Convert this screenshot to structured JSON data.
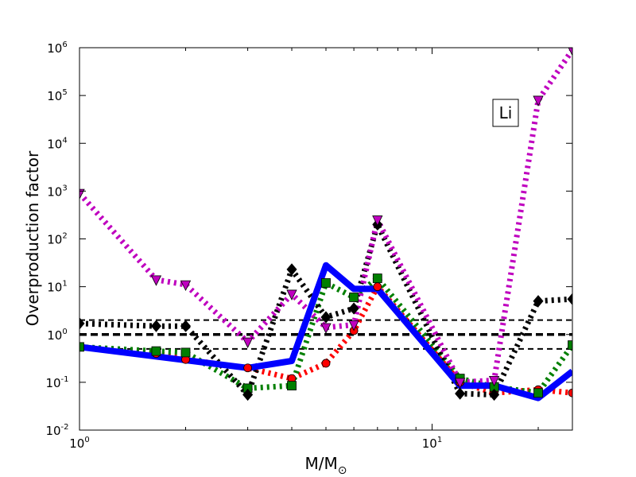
{
  "chart_data": {
    "type": "line",
    "title": "",
    "xlabel": "M/M",
    "xlabel_subscript": "⊙",
    "ylabel": "Overproduction factor",
    "annotation": "Li",
    "xscale": "log",
    "yscale": "log",
    "xlim": [
      1,
      25
    ],
    "ylim": [
      0.01,
      1000000
    ],
    "x_ticks": [
      {
        "value": 1,
        "base": "10",
        "exp": "0"
      },
      {
        "value": 10,
        "base": "10",
        "exp": "1"
      }
    ],
    "y_ticks": [
      {
        "value": 0.01,
        "base": "10",
        "exp": "-2"
      },
      {
        "value": 0.1,
        "base": "10",
        "exp": "-1"
      },
      {
        "value": 1,
        "base": "10",
        "exp": "0"
      },
      {
        "value": 10,
        "base": "10",
        "exp": "1"
      },
      {
        "value": 100,
        "base": "10",
        "exp": "2"
      },
      {
        "value": 1000,
        "base": "10",
        "exp": "3"
      },
      {
        "value": 10000,
        "base": "10",
        "exp": "4"
      },
      {
        "value": 100000,
        "base": "10",
        "exp": "5"
      },
      {
        "value": 1000000,
        "base": "10",
        "exp": "6"
      }
    ],
    "reference_lines": [
      {
        "y": 2,
        "style": "dashed",
        "color": "#000000"
      },
      {
        "y": 1,
        "style": "dashed-bold",
        "color": "#000000"
      },
      {
        "y": 0.5,
        "style": "dashed",
        "color": "#000000"
      }
    ],
    "series": [
      {
        "color": "#ff0000",
        "line": "dotted",
        "marker": "circle",
        "x": [
          1,
          1.65,
          2,
          3,
          4,
          5,
          6,
          7,
          12,
          15,
          20,
          25
        ],
        "y": [
          0.55,
          0.4,
          0.3,
          0.2,
          0.12,
          0.25,
          1.2,
          10,
          0.1,
          0.06,
          0.07,
          0.06
        ]
      },
      {
        "color": "#007f00",
        "line": "dotted",
        "marker": "square",
        "x": [
          1,
          1.65,
          2,
          3,
          4,
          5,
          6,
          7,
          12,
          15,
          20,
          25
        ],
        "y": [
          0.55,
          0.45,
          0.42,
          0.075,
          0.085,
          12,
          6,
          15,
          0.12,
          0.08,
          0.06,
          0.6
        ]
      },
      {
        "color": "#000000",
        "line": "dotted",
        "marker": "diamond",
        "x": [
          1,
          1.65,
          2,
          3,
          4,
          5,
          6,
          7,
          12,
          15,
          20,
          25
        ],
        "y": [
          1.7,
          1.5,
          1.5,
          0.055,
          23,
          2.3,
          3.5,
          200,
          0.058,
          0.055,
          5,
          5.5
        ]
      },
      {
        "color": "#bf00bf",
        "line": "dotted",
        "marker": "triangle-down",
        "x": [
          1,
          1.65,
          2,
          3,
          4,
          5,
          6,
          7,
          12,
          15,
          20,
          25
        ],
        "y": [
          900,
          14,
          11,
          0.7,
          7,
          1.4,
          1.6,
          250,
          0.1,
          0.11,
          80000,
          900000
        ]
      },
      {
        "color": "#0000ff",
        "line": "solid",
        "marker": "none",
        "x": [
          1,
          3,
          4,
          5,
          6,
          7,
          12,
          15,
          20,
          25
        ],
        "y": [
          0.55,
          0.2,
          0.28,
          28,
          9,
          9,
          0.085,
          0.085,
          0.047,
          0.17
        ]
      }
    ]
  }
}
